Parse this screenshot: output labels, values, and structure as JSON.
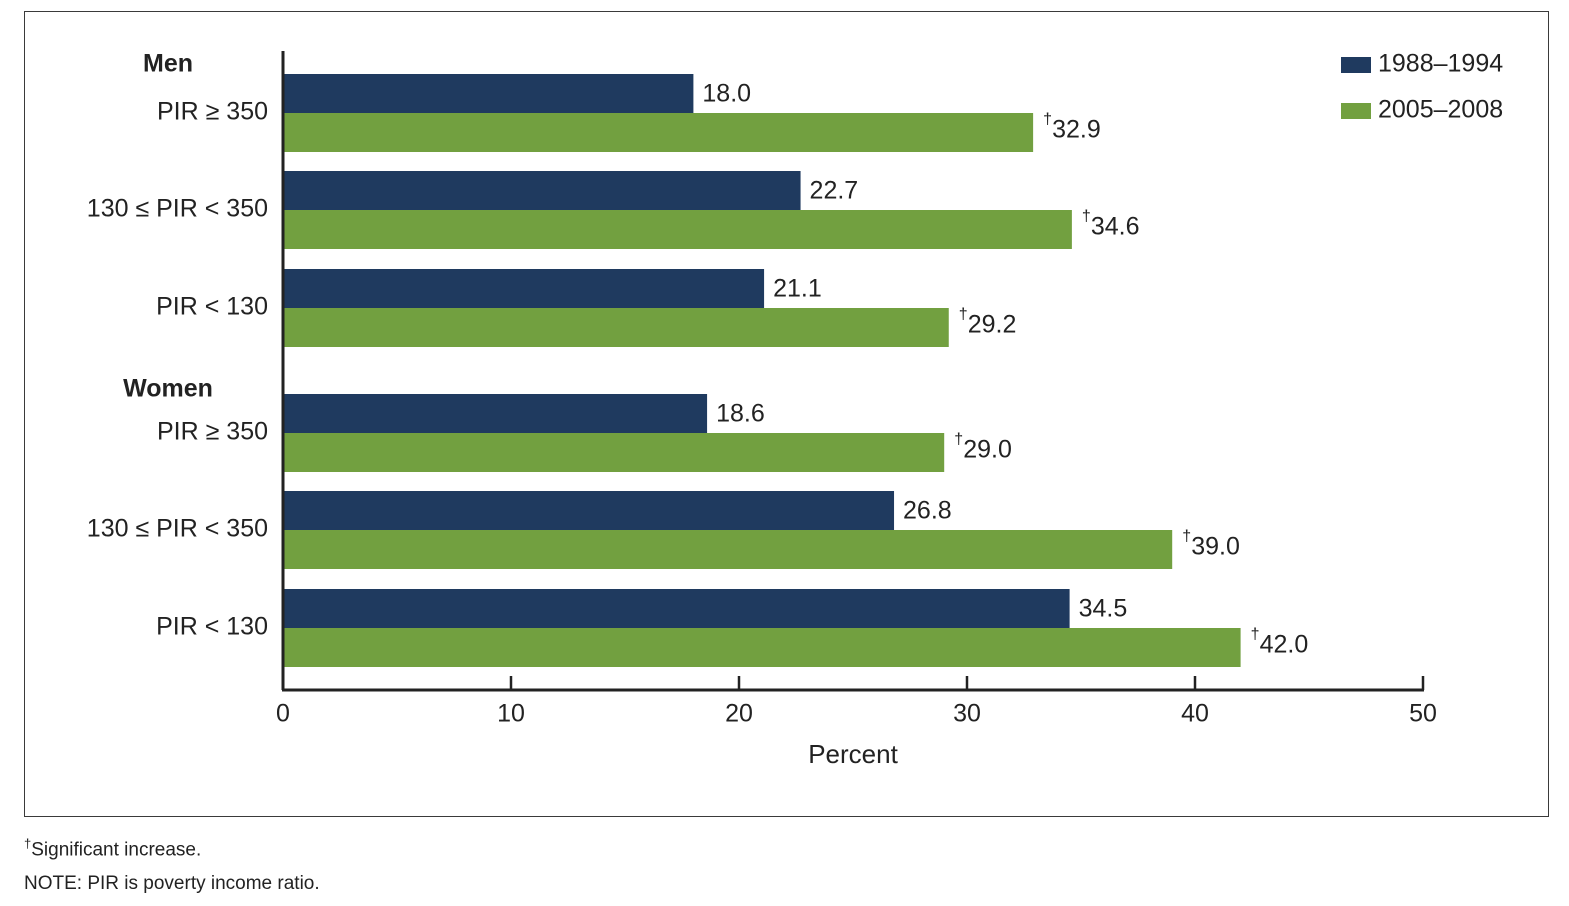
{
  "chart_data": {
    "type": "bar",
    "orientation": "horizontal",
    "groups": [
      {
        "label": "Men",
        "categories": [
          "PIR ≥ 350",
          "130 ≤ PIR < 350",
          "PIR < 130"
        ]
      },
      {
        "label": "Women",
        "categories": [
          "PIR ≥ 350",
          "130 ≤ PIR < 350",
          "PIR < 130"
        ]
      }
    ],
    "series": [
      {
        "name": "1988–1994",
        "color": "#1f3a5f",
        "values": [
          18.0,
          22.7,
          21.1,
          18.6,
          26.8,
          34.5
        ],
        "labels": [
          "18.0",
          "22.7",
          "21.1",
          "18.6",
          "26.8",
          "34.5"
        ],
        "significant": [
          false,
          false,
          false,
          false,
          false,
          false
        ]
      },
      {
        "name": "2005–2008",
        "color": "#72a040",
        "values": [
          32.9,
          34.6,
          29.2,
          29.0,
          39.0,
          42.0
        ],
        "labels": [
          "32.9",
          "34.6",
          "29.2",
          "29.0",
          "39.0",
          "42.0"
        ],
        "significant": [
          true,
          true,
          true,
          true,
          true,
          true
        ]
      }
    ],
    "significance_marker": "†",
    "xlabel": "Percent",
    "xlim": [
      0,
      50
    ],
    "xticks": [
      0,
      10,
      20,
      30,
      40,
      50
    ],
    "legend_position": "top-right",
    "grid": false
  },
  "footnotes": {
    "marker": "†",
    "significant": "Significant increase.",
    "note": "NOTE: PIR is poverty income ratio."
  }
}
